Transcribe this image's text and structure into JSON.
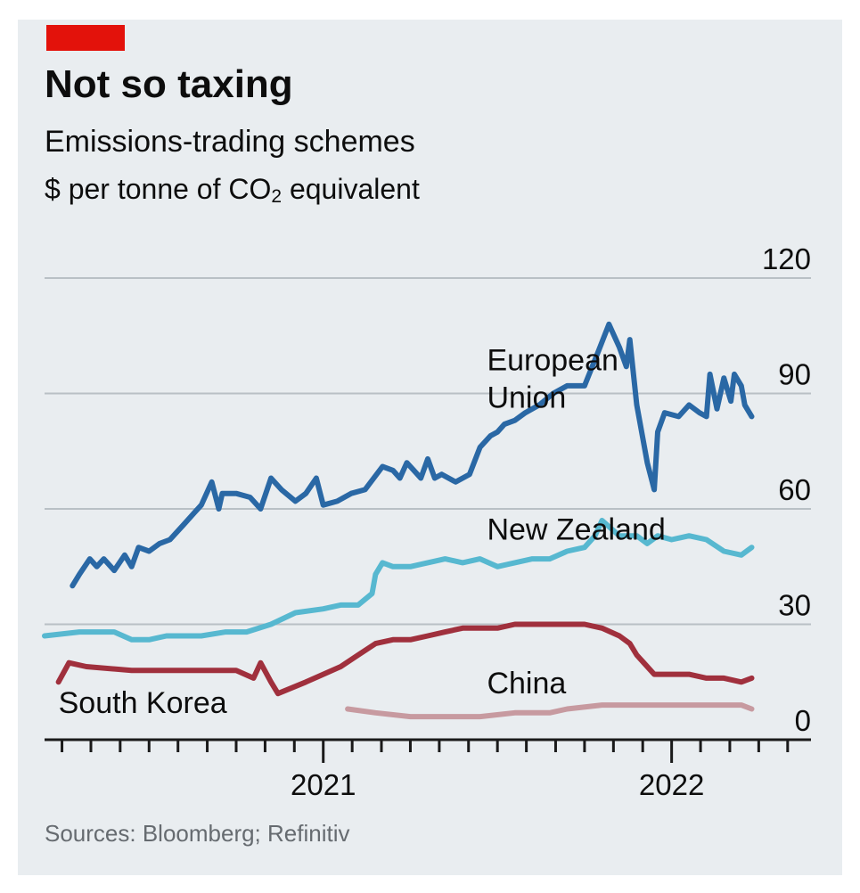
{
  "header": {
    "title": "Not so taxing",
    "subtitle": "Emissions-trading schemes",
    "unit_prefix": "$ per tonne of CO",
    "unit_sub": "2",
    "unit_suffix": " equivalent"
  },
  "footer": {
    "source": "Sources: Bloomberg; Refinitiv"
  },
  "colors": {
    "accent": "#e3120b",
    "background": "#e9edf0",
    "grid": "#b9c0c5",
    "eu": "#2a68a5",
    "nz": "#57b8d0",
    "sk": "#a0303d",
    "china": "#c79aa0"
  },
  "chart_data": {
    "type": "line",
    "title": "Not so taxing",
    "subtitle": "Emissions-trading schemes",
    "ylabel": "$ per tonne of CO2 equivalent",
    "xlabel": "",
    "ylim": [
      0,
      120
    ],
    "xlim": [
      2020.2,
      2022.4
    ],
    "yticks": [
      0,
      30,
      60,
      90,
      120
    ],
    "ytick_labels": [
      "0",
      "30",
      "60",
      "90",
      "120"
    ],
    "xticks_major": [
      2021,
      2022
    ],
    "xtick_labels": [
      "2021",
      "2022"
    ],
    "xticks_minor": [
      2020.25,
      2020.333,
      2020.417,
      2020.5,
      2020.583,
      2020.667,
      2020.75,
      2020.833,
      2020.917,
      2021.083,
      2021.167,
      2021.25,
      2021.333,
      2021.417,
      2021.5,
      2021.583,
      2021.667,
      2021.75,
      2021.833,
      2021.917,
      2022.083,
      2022.167,
      2022.25,
      2022.333
    ],
    "grid": true,
    "legend": "inline labels",
    "series": [
      {
        "name": "European Union",
        "label_lines": [
          "European",
          "Union"
        ],
        "color": "#2a68a5",
        "points": [
          [
            2020.28,
            40
          ],
          [
            2020.3,
            43
          ],
          [
            2020.33,
            47
          ],
          [
            2020.35,
            45
          ],
          [
            2020.37,
            47
          ],
          [
            2020.4,
            44
          ],
          [
            2020.43,
            48
          ],
          [
            2020.45,
            45
          ],
          [
            2020.47,
            50
          ],
          [
            2020.5,
            49
          ],
          [
            2020.53,
            51
          ],
          [
            2020.56,
            52
          ],
          [
            2020.6,
            56
          ],
          [
            2020.63,
            59
          ],
          [
            2020.65,
            61
          ],
          [
            2020.68,
            67
          ],
          [
            2020.7,
            60
          ],
          [
            2020.71,
            64
          ],
          [
            2020.75,
            64
          ],
          [
            2020.79,
            63
          ],
          [
            2020.82,
            60
          ],
          [
            2020.85,
            68
          ],
          [
            2020.88,
            65
          ],
          [
            2020.92,
            62
          ],
          [
            2020.95,
            64
          ],
          [
            2020.98,
            68
          ],
          [
            2021.0,
            61
          ],
          [
            2021.04,
            62
          ],
          [
            2021.08,
            64
          ],
          [
            2021.12,
            65
          ],
          [
            2021.17,
            71
          ],
          [
            2021.2,
            70
          ],
          [
            2021.22,
            68
          ],
          [
            2021.24,
            72
          ],
          [
            2021.26,
            70
          ],
          [
            2021.28,
            68
          ],
          [
            2021.3,
            73
          ],
          [
            2021.32,
            68
          ],
          [
            2021.34,
            69
          ],
          [
            2021.38,
            67
          ],
          [
            2021.42,
            69
          ],
          [
            2021.45,
            76
          ],
          [
            2021.48,
            79
          ],
          [
            2021.5,
            80
          ],
          [
            2021.52,
            82
          ],
          [
            2021.55,
            83
          ],
          [
            2021.58,
            85
          ],
          [
            2021.62,
            87
          ],
          [
            2021.66,
            90
          ],
          [
            2021.7,
            92
          ],
          [
            2021.75,
            92
          ],
          [
            2021.79,
            101
          ],
          [
            2021.82,
            108
          ],
          [
            2021.85,
            102
          ],
          [
            2021.87,
            97
          ],
          [
            2021.88,
            104
          ],
          [
            2021.9,
            87
          ],
          [
            2021.93,
            72
          ],
          [
            2021.95,
            65
          ],
          [
            2021.96,
            80
          ],
          [
            2021.98,
            85
          ],
          [
            2022.02,
            84
          ],
          [
            2022.05,
            87
          ],
          [
            2022.08,
            85
          ],
          [
            2022.1,
            84
          ],
          [
            2022.11,
            95
          ],
          [
            2022.13,
            86
          ],
          [
            2022.15,
            94
          ],
          [
            2022.17,
            88
          ],
          [
            2022.18,
            95
          ],
          [
            2022.2,
            92
          ],
          [
            2022.21,
            87
          ],
          [
            2022.23,
            84
          ]
        ]
      },
      {
        "name": "New Zealand",
        "label_lines": [
          "New Zealand"
        ],
        "color": "#57b8d0",
        "points": [
          [
            2020.2,
            27
          ],
          [
            2020.3,
            28
          ],
          [
            2020.4,
            28
          ],
          [
            2020.45,
            26
          ],
          [
            2020.5,
            26
          ],
          [
            2020.55,
            27
          ],
          [
            2020.65,
            27
          ],
          [
            2020.72,
            28
          ],
          [
            2020.78,
            28
          ],
          [
            2020.85,
            30
          ],
          [
            2020.92,
            33
          ],
          [
            2021.0,
            34
          ],
          [
            2021.05,
            35
          ],
          [
            2021.1,
            35
          ],
          [
            2021.14,
            38
          ],
          [
            2021.15,
            43
          ],
          [
            2021.17,
            46
          ],
          [
            2021.2,
            45
          ],
          [
            2021.25,
            45
          ],
          [
            2021.3,
            46
          ],
          [
            2021.35,
            47
          ],
          [
            2021.4,
            46
          ],
          [
            2021.45,
            47
          ],
          [
            2021.5,
            45
          ],
          [
            2021.55,
            46
          ],
          [
            2021.6,
            47
          ],
          [
            2021.65,
            47
          ],
          [
            2021.7,
            49
          ],
          [
            2021.75,
            50
          ],
          [
            2021.78,
            53
          ],
          [
            2021.8,
            57
          ],
          [
            2021.85,
            53
          ],
          [
            2021.88,
            53
          ],
          [
            2021.9,
            53
          ],
          [
            2021.93,
            51
          ],
          [
            2021.96,
            53
          ],
          [
            2022.0,
            52
          ],
          [
            2022.05,
            53
          ],
          [
            2022.1,
            52
          ],
          [
            2022.15,
            49
          ],
          [
            2022.2,
            48
          ],
          [
            2022.23,
            50
          ]
        ]
      },
      {
        "name": "South Korea",
        "label_lines": [
          "South Korea"
        ],
        "color": "#a0303d",
        "points": [
          [
            2020.24,
            15
          ],
          [
            2020.27,
            20
          ],
          [
            2020.32,
            19
          ],
          [
            2020.45,
            18
          ],
          [
            2020.6,
            18
          ],
          [
            2020.75,
            18
          ],
          [
            2020.8,
            16
          ],
          [
            2020.82,
            20
          ],
          [
            2020.85,
            15
          ],
          [
            2020.87,
            12
          ],
          [
            2020.95,
            15
          ],
          [
            2021.05,
            19
          ],
          [
            2021.1,
            22
          ],
          [
            2021.15,
            25
          ],
          [
            2021.2,
            26
          ],
          [
            2021.25,
            26
          ],
          [
            2021.3,
            27
          ],
          [
            2021.35,
            28
          ],
          [
            2021.4,
            29
          ],
          [
            2021.45,
            29
          ],
          [
            2021.5,
            29
          ],
          [
            2021.55,
            30
          ],
          [
            2021.65,
            30
          ],
          [
            2021.75,
            30
          ],
          [
            2021.8,
            29
          ],
          [
            2021.85,
            27
          ],
          [
            2021.88,
            25
          ],
          [
            2021.9,
            22
          ],
          [
            2021.92,
            20
          ],
          [
            2021.95,
            17
          ],
          [
            2022.0,
            17
          ],
          [
            2022.05,
            17
          ],
          [
            2022.1,
            16
          ],
          [
            2022.15,
            16
          ],
          [
            2022.2,
            15
          ],
          [
            2022.23,
            16
          ]
        ]
      },
      {
        "name": "China",
        "label_lines": [
          "China"
        ],
        "color": "#c79aa0",
        "points": [
          [
            2021.07,
            8
          ],
          [
            2021.15,
            7
          ],
          [
            2021.25,
            6
          ],
          [
            2021.35,
            6
          ],
          [
            2021.45,
            6
          ],
          [
            2021.55,
            7
          ],
          [
            2021.65,
            7
          ],
          [
            2021.7,
            8
          ],
          [
            2021.8,
            9
          ],
          [
            2021.9,
            9
          ],
          [
            2022.0,
            9
          ],
          [
            2022.1,
            9
          ],
          [
            2022.2,
            9
          ],
          [
            2022.23,
            8
          ]
        ]
      }
    ]
  }
}
